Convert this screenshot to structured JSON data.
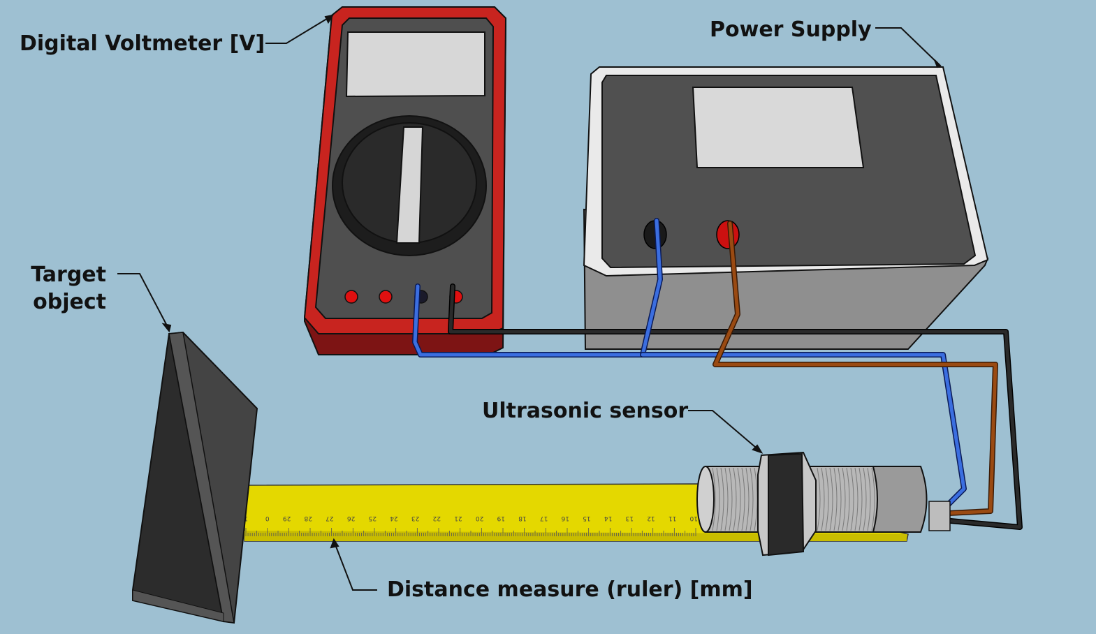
{
  "labels": {
    "voltmeter": "Digital Voltmeter [V]",
    "power_supply": "Power Supply",
    "target_line1": "Target",
    "target_line2": "object",
    "sensor": "Ultrasonic sensor",
    "ruler": "Distance measure (ruler) [mm]"
  },
  "ruler_ticks": [
    "1",
    "0",
    "29",
    "28",
    "27",
    "26",
    "25",
    "24",
    "23",
    "22",
    "21",
    "20",
    "19",
    "18",
    "17",
    "16",
    "15",
    "14",
    "13",
    "12",
    "11",
    "10"
  ],
  "colors": {
    "background": "#9ec0d2",
    "voltmeter_body": "#c8241f",
    "power_supply_frame": "#e8e8e8",
    "wire_blue": "#3b6ee0",
    "wire_black": "#1a1a1a",
    "wire_brown": "#9a4a12",
    "ruler": "#e4d800",
    "target": "#2a2a2a"
  }
}
